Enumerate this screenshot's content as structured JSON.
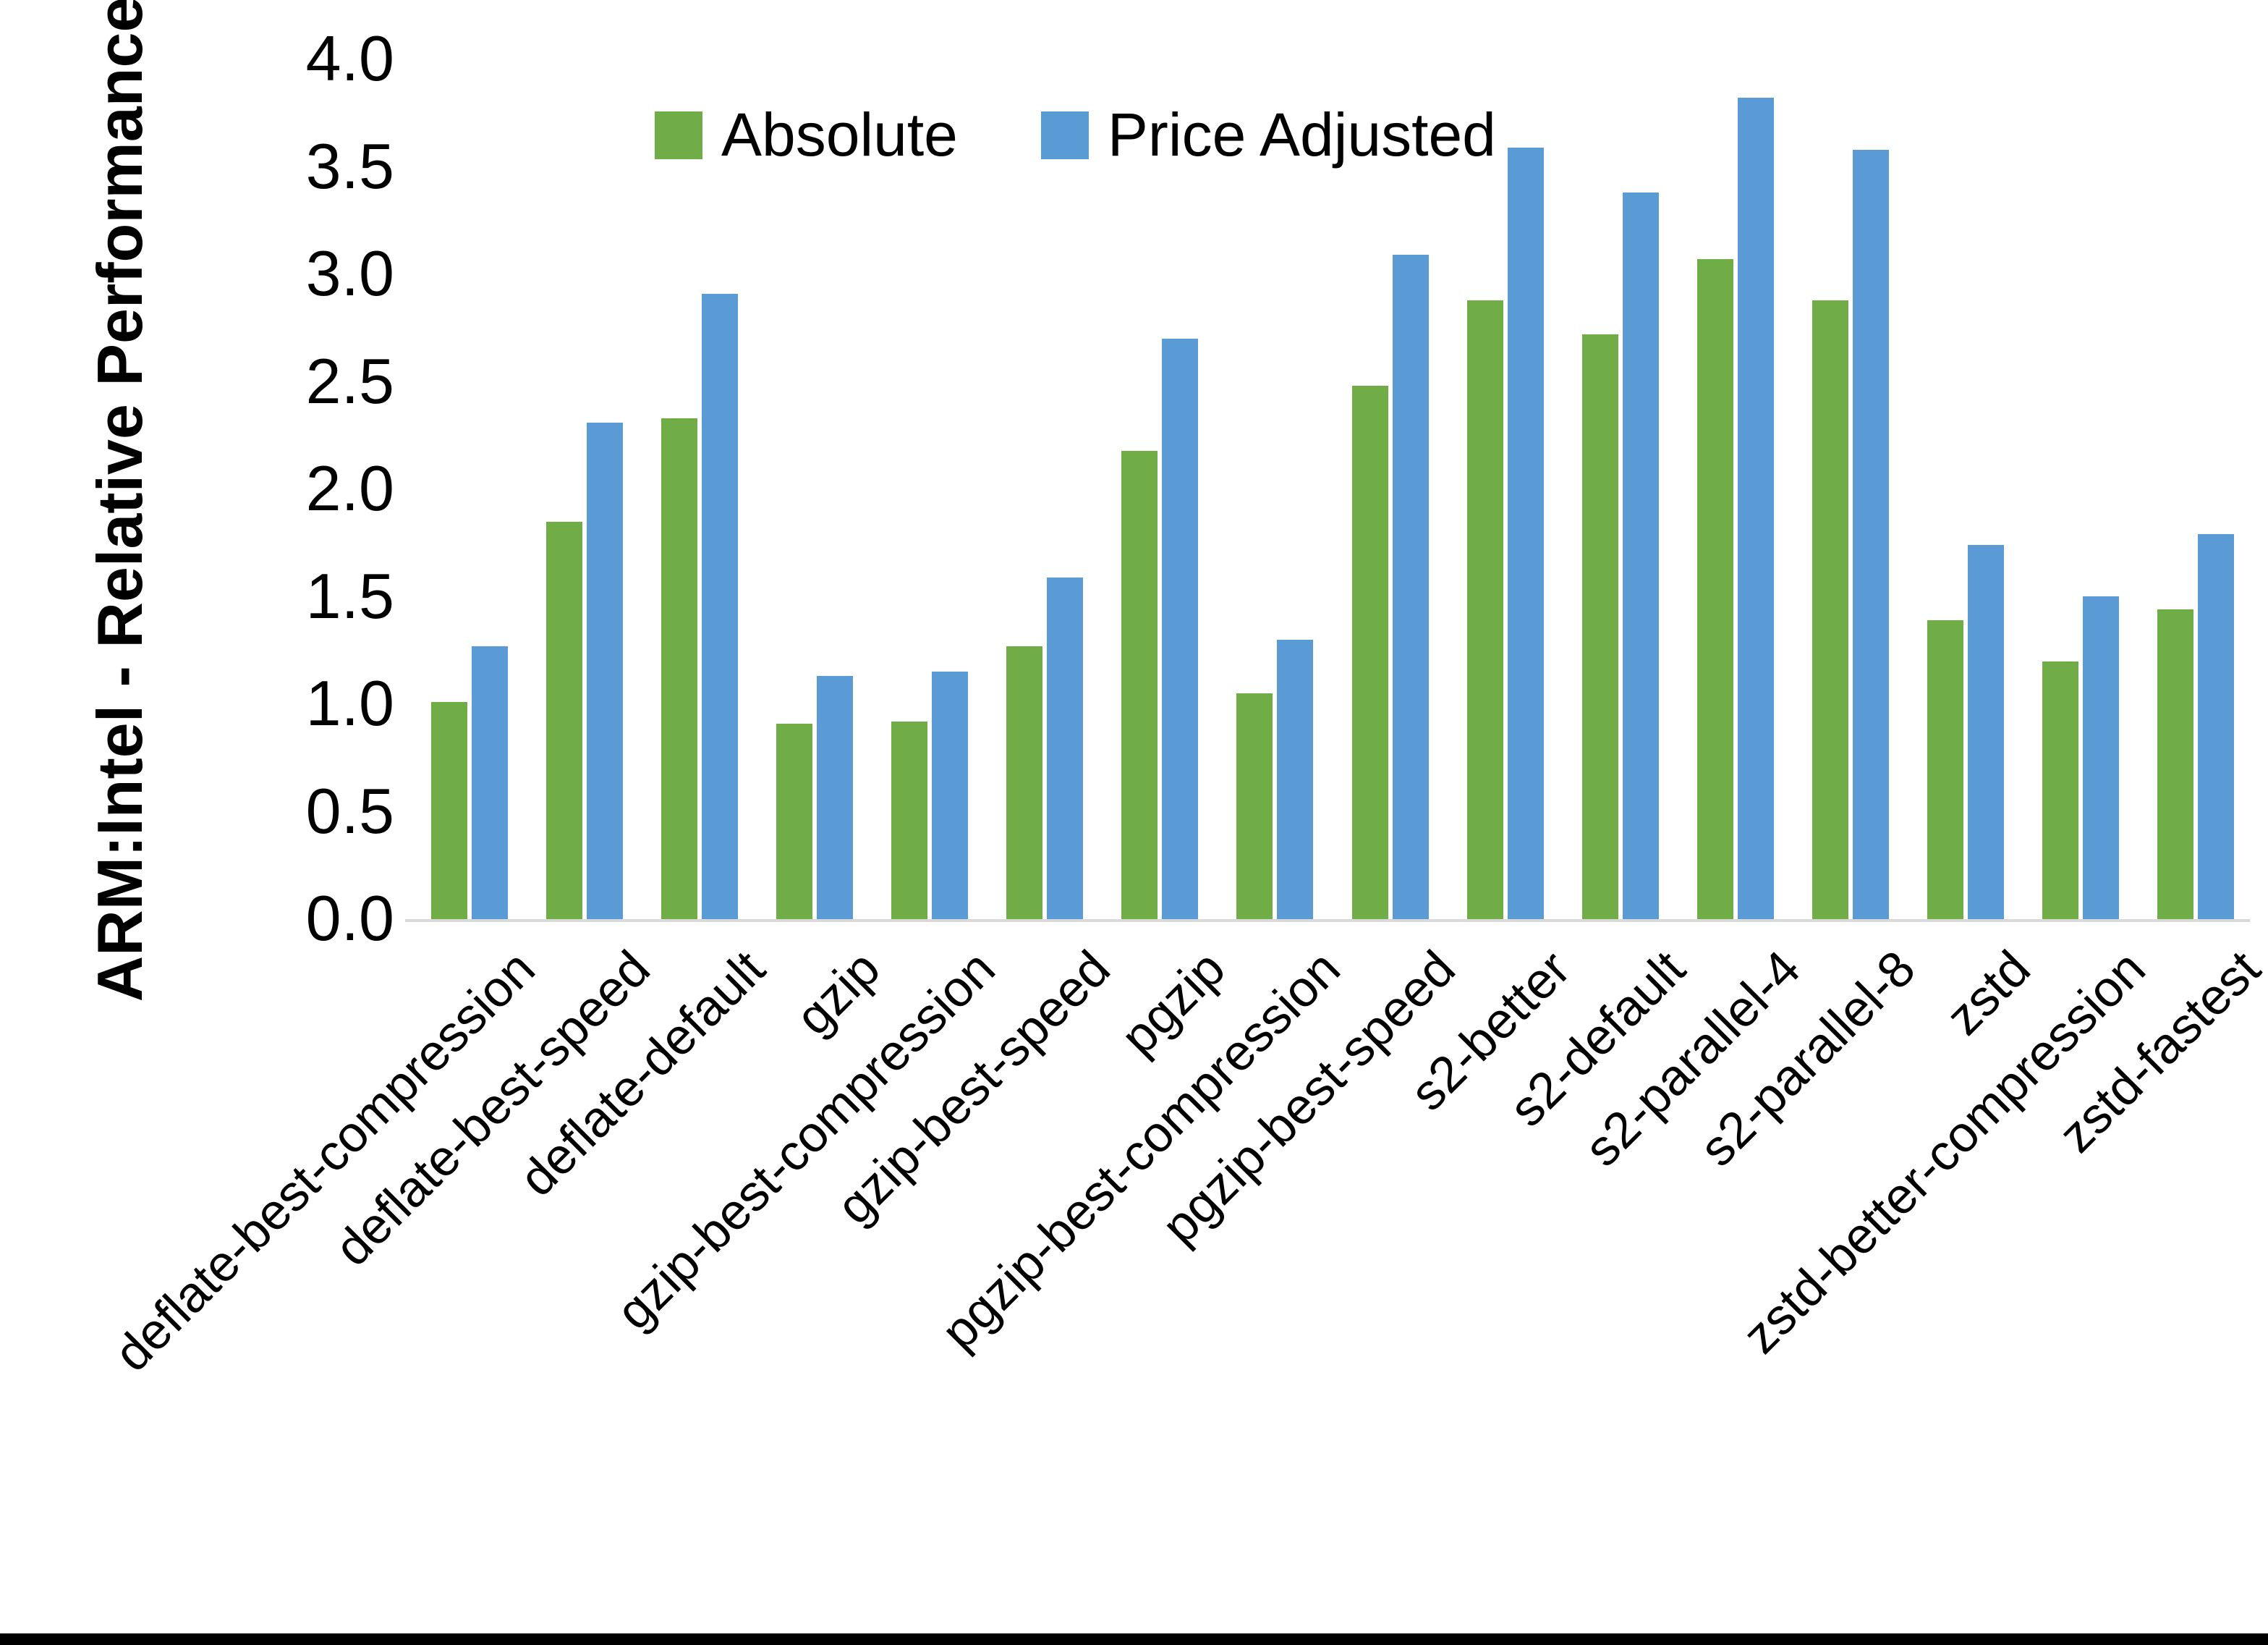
{
  "accent_colors": {
    "absolute_green": "#70AD47",
    "price_adjusted_blue": "#5B9BD5",
    "axis_line_gray": "#D9D9D9",
    "text_black": "#000000"
  },
  "y_axis": {
    "title": "ARM:Intel - Relative Performance",
    "tick_labels": [
      "0.0",
      "0.5",
      "1.0",
      "1.5",
      "2.0",
      "2.5",
      "3.0",
      "3.5",
      "4.0"
    ]
  },
  "legend": [
    {
      "label": "Absolute"
    },
    {
      "label": "Price Adjusted"
    }
  ],
  "chart_data": {
    "type": "bar",
    "title": "",
    "xlabel": "",
    "ylabel": "ARM:Intel - Relative Performance",
    "ylim": [
      0.0,
      4.0
    ],
    "ytick_step": 0.5,
    "grid": false,
    "legend_position": "top-center",
    "categories": [
      "deflate-best-compression",
      "deflate-best-speed",
      "deflate-default",
      "gzip",
      "gzip-best-compression",
      "gzip-best-speed",
      "pgzip",
      "pgzip-best-compression",
      "pgzip-best-speed",
      "s2-better",
      "s2-default",
      "s2-parallel-4",
      "s2-parallel-8",
      "zstd",
      "zstd-better-compression",
      "zstd-fastest"
    ],
    "series": [
      {
        "name": "Absolute",
        "color": "#70AD47",
        "values": [
          1.01,
          1.85,
          2.33,
          0.91,
          0.92,
          1.27,
          2.18,
          1.05,
          2.48,
          2.88,
          2.72,
          3.07,
          2.88,
          1.39,
          1.2,
          1.44
        ]
      },
      {
        "name": "Price Adjusted",
        "color": "#5B9BD5",
        "values": [
          1.27,
          2.31,
          2.91,
          1.13,
          1.15,
          1.59,
          2.7,
          1.3,
          3.09,
          3.59,
          3.38,
          3.82,
          3.58,
          1.74,
          1.5,
          1.79
        ]
      }
    ]
  }
}
